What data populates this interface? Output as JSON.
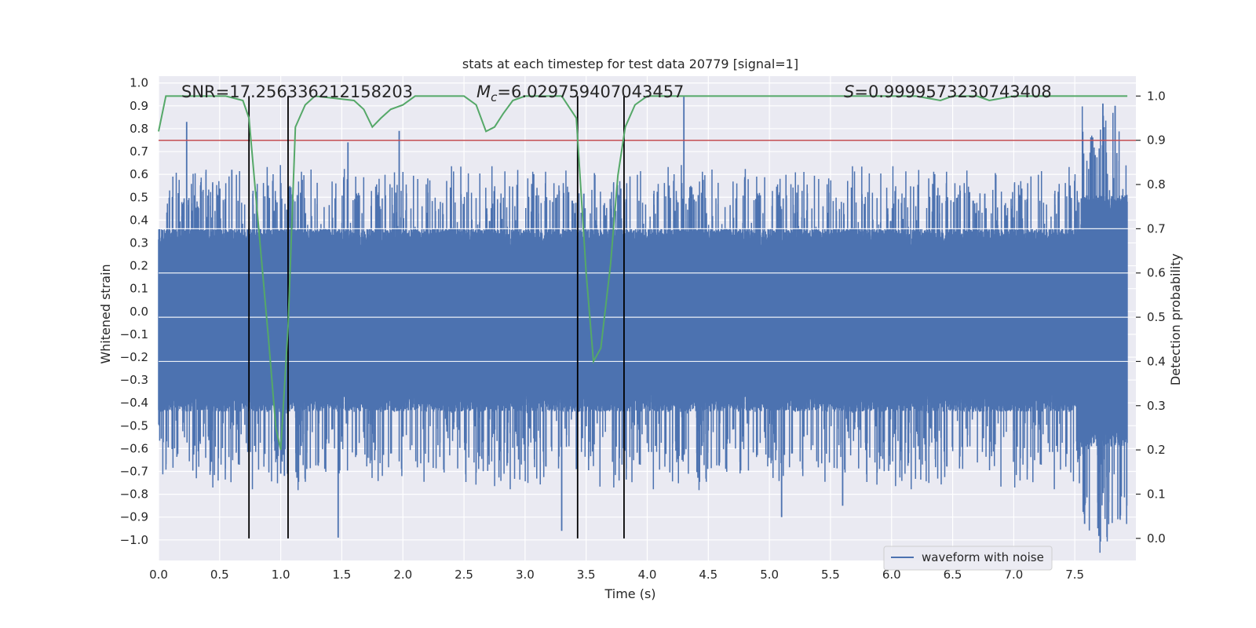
{
  "chart_data": {
    "type": "line",
    "title": "stats at each timestep for test data 20779 [signal=1]",
    "xlabel": "Time (s)",
    "ylabel": "Whitened strain",
    "y2label": "Detection probability",
    "xlim": [
      0.0,
      8.0
    ],
    "ylim": [
      -1.09,
      1.03
    ],
    "y2lim": [
      -0.05,
      1.045
    ],
    "xticks": [
      "0.0",
      "0.5",
      "1.0",
      "1.5",
      "2.0",
      "2.5",
      "3.0",
      "3.5",
      "4.0",
      "4.5",
      "5.0",
      "5.5",
      "6.0",
      "6.5",
      "7.0",
      "7.5"
    ],
    "yticks": [
      "1.0",
      "0.9",
      "0.8",
      "0.7",
      "0.6",
      "0.5",
      "0.4",
      "0.3",
      "0.2",
      "0.1",
      "0.0",
      "−0.1",
      "−0.2",
      "−0.3",
      "−0.4",
      "−0.5",
      "−0.6",
      "−0.7",
      "−0.8",
      "−0.9",
      "−1.0"
    ],
    "y2ticks": [
      "1.0",
      "0.9",
      "0.8",
      "0.7",
      "0.6",
      "0.5",
      "0.4",
      "0.3",
      "0.2",
      "0.1",
      "0.0"
    ],
    "grid": true,
    "annotations": {
      "snr": "SNR=17.256336212158203",
      "mc_prefix": "M",
      "mc_sub": "c",
      "mc_value": "=6.029759407043457",
      "s_prefix": "S",
      "s_value": "=0.9999573230743408"
    },
    "legend": {
      "placement": "lower-right",
      "entries": [
        "waveform with noise"
      ]
    },
    "threshold_y2": 0.9,
    "vertical_lines_x": [
      0.74,
      1.06,
      3.43,
      3.81
    ],
    "waveform_envelope": {
      "description_free": true,
      "base_amplitude": 0.33,
      "peaks": [
        {
          "x": 0.23,
          "y": 0.83
        },
        {
          "x": 0.6,
          "y": 0.62
        },
        {
          "x": 1.0,
          "y": -0.71
        },
        {
          "x": 1.03,
          "y": -0.72
        },
        {
          "x": 1.47,
          "y": -0.99
        },
        {
          "x": 1.55,
          "y": 0.74
        },
        {
          "x": 1.97,
          "y": 0.79
        },
        {
          "x": 3.3,
          "y": -0.96
        },
        {
          "x": 3.42,
          "y": -0.69
        },
        {
          "x": 3.82,
          "y": -0.61
        },
        {
          "x": 4.3,
          "y": 0.94
        },
        {
          "x": 5.1,
          "y": -0.9
        },
        {
          "x": 5.6,
          "y": -0.85
        },
        {
          "x": 7.58,
          "y": -0.93
        },
        {
          "x": 7.73,
          "y": 0.91
        },
        {
          "x": 7.88,
          "y": -0.81
        },
        {
          "x": 7.83,
          "y": 0.9
        }
      ]
    },
    "series": [
      {
        "name": "",
        "axis": "y2",
        "color": "#55a868",
        "x": [
          0.0,
          0.06,
          0.2,
          0.55,
          0.69,
          0.74,
          0.82,
          0.9,
          0.96,
          1.0,
          1.06,
          1.12,
          1.2,
          1.28,
          1.6,
          1.68,
          1.75,
          1.82,
          1.9,
          2.0,
          2.1,
          2.5,
          2.6,
          2.68,
          2.75,
          2.82,
          2.9,
          3.0,
          3.3,
          3.42,
          3.5,
          3.56,
          3.62,
          3.7,
          3.76,
          3.82,
          3.9,
          4.0,
          4.1,
          5.0,
          5.5,
          6.0,
          6.2,
          6.4,
          6.5,
          6.7,
          6.8,
          7.0,
          7.3,
          7.5,
          7.93
        ],
        "y": [
          0.92,
          1.0,
          1.0,
          1.0,
          0.99,
          0.95,
          0.7,
          0.45,
          0.25,
          0.2,
          0.48,
          0.93,
          0.98,
          1.0,
          0.99,
          0.97,
          0.93,
          0.95,
          0.97,
          0.98,
          1.0,
          1.0,
          0.98,
          0.92,
          0.93,
          0.96,
          0.99,
          1.0,
          1.0,
          0.95,
          0.6,
          0.4,
          0.43,
          0.62,
          0.82,
          0.93,
          0.98,
          1.0,
          1.0,
          1.0,
          1.0,
          1.0,
          1.0,
          0.99,
          1.0,
          1.0,
          0.99,
          1.0,
          1.0,
          1.0,
          1.0
        ]
      },
      {
        "name": "waveform with noise",
        "axis": "y",
        "color": "#4c72b0",
        "samples": 8000
      }
    ],
    "colors": {
      "plot_bg": "#eaeaf2",
      "grid": "#ffffff",
      "waveform": "#4c72b0",
      "probability": "#55a868",
      "threshold": "#c44e52",
      "vertical": "#000000"
    }
  }
}
